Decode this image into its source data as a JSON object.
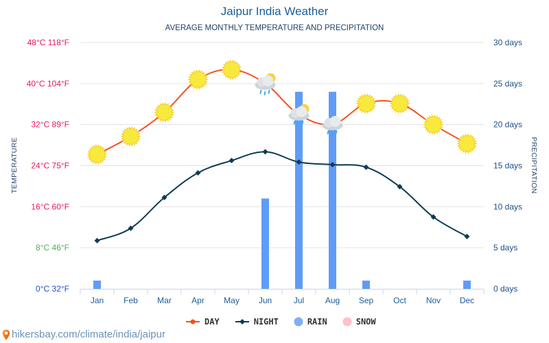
{
  "chart_data": {
    "type": "line",
    "title": "Jaipur India Weather",
    "subtitle": "AVERAGE MONTHLY TEMPERATURE AND PRECIPITATION",
    "categories": [
      "Jan",
      "Feb",
      "Mar",
      "Apr",
      "May",
      "Jun",
      "Jul",
      "Aug",
      "Sep",
      "Oct",
      "Nov",
      "Dec"
    ],
    "ylabel_left": "TEMPERATURE",
    "ylabel_right": "PRECIPITATION",
    "ylim_left": [
      0,
      48
    ],
    "ylim_right": [
      0,
      30
    ],
    "left_ticks": [
      {
        "value": 48,
        "label": "48°C 118°F",
        "color": "#e8175d"
      },
      {
        "value": 40,
        "label": "40°C 104°F",
        "color": "#e8175d"
      },
      {
        "value": 32,
        "label": "32°C 89°F",
        "color": "#e8175d"
      },
      {
        "value": 24,
        "label": "24°C 75°F",
        "color": "#e8175d"
      },
      {
        "value": 16,
        "label": "16°C 60°F",
        "color": "#e8175d"
      },
      {
        "value": 8,
        "label": "8°C 46°F",
        "color": "#4caf50"
      },
      {
        "value": 0,
        "label": "0°C 32°F",
        "color": "#1b4fd6"
      }
    ],
    "right_ticks": [
      {
        "value": 30,
        "label": "30 days"
      },
      {
        "value": 25,
        "label": "25 days"
      },
      {
        "value": 20,
        "label": "20 days"
      },
      {
        "value": 15,
        "label": "15 days"
      },
      {
        "value": 10,
        "label": "10 days"
      },
      {
        "value": 5,
        "label": "5 days"
      },
      {
        "value": 0,
        "label": "0 days"
      }
    ],
    "grid": true,
    "series": [
      {
        "name": "DAY",
        "type": "line",
        "axis": "left",
        "color": "#f4511e",
        "values": [
          26.2,
          29.7,
          34.4,
          40.8,
          42.7,
          40.0,
          34.0,
          32.1,
          36.1,
          36.1,
          32.0,
          28.3
        ],
        "icons": [
          "sun",
          "sun",
          "sun",
          "sun",
          "sun",
          "rain-cloud-sun",
          "rain-cloud-sun",
          "rain-cloud",
          "sun",
          "sun",
          "sun",
          "sun"
        ]
      },
      {
        "name": "NIGHT",
        "type": "line",
        "axis": "left",
        "color": "#0d3b54",
        "values": [
          9.4,
          11.8,
          17.8,
          22.6,
          25.0,
          26.7,
          24.7,
          24.2,
          23.7,
          19.9,
          14.0,
          10.2
        ]
      },
      {
        "name": "RAIN",
        "type": "bar",
        "axis": "right",
        "color": "#5f9cf8",
        "values": [
          1,
          0,
          0,
          0,
          0,
          11,
          24,
          24,
          1,
          0,
          0,
          1
        ]
      },
      {
        "name": "SNOW",
        "type": "bar",
        "axis": "right",
        "color": "#ffc0cb",
        "values": [
          0,
          0,
          0,
          0,
          0,
          0,
          0,
          0,
          0,
          0,
          0,
          0
        ]
      }
    ],
    "legend": "bottom-center"
  },
  "legend": [
    {
      "label": "DAY",
      "color": "#f4511e",
      "marker": "line-dot"
    },
    {
      "label": "NIGHT",
      "color": "#0d3b54",
      "marker": "line-diamond"
    },
    {
      "label": "RAIN",
      "color": "#7fb0f0",
      "marker": "circle"
    },
    {
      "label": "SNOW",
      "color": "#ffc0cb",
      "marker": "circle"
    }
  ],
  "source": {
    "icon": "location-pin-icon",
    "text": "hikersbay.com/climate/india/jaipur"
  }
}
